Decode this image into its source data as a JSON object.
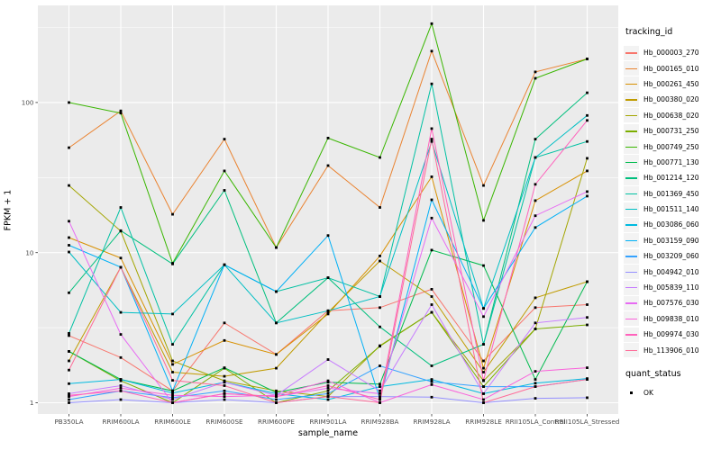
{
  "chart_data": {
    "type": "line",
    "title": "",
    "xlabel": "sample_name",
    "ylabel": "FPKM + 1",
    "y_scale": "log10",
    "y_ticks": [
      1,
      10,
      100
    ],
    "y_minor": [
      3.162,
      31.62,
      316.2
    ],
    "ylim": [
      0.84,
      420
    ],
    "grid": true,
    "panel_bg": "#EBEBEB",
    "grid_color": "#FFFFFF",
    "axis_text_color": "#4D4D4D",
    "point_color": "#000000",
    "categories": [
      "PB350LA",
      "RRIM600LA",
      "RRIM600LE",
      "RRIM600SE",
      "RRIM600PE",
      "RRIM901LA",
      "RRIM928BA",
      "RRIM928LA",
      "RRIM928LE",
      "RRII105LA_Control",
      "RRII105LA_Stressed"
    ],
    "series": [
      {
        "name": "Hb_000003_270",
        "color": "#F8766D",
        "values": [
          2.8,
          2.0,
          1.2,
          3.4,
          2.1,
          4.1,
          4.3,
          5.7,
          1.9,
          4.3,
          4.5
        ]
      },
      {
        "name": "Hb_000165_010",
        "color": "#EA8331",
        "values": [
          50,
          88,
          18,
          57,
          10.8,
          38,
          20,
          220,
          28,
          160,
          195
        ]
      },
      {
        "name": "Hb_000261_450",
        "color": "#D89000",
        "values": [
          12.6,
          9.2,
          1.8,
          2.6,
          2.1,
          3.9,
          9.5,
          32,
          1.7,
          22.2,
          35
        ]
      },
      {
        "name": "Hb_000380_020",
        "color": "#C09B00",
        "values": [
          1.9,
          8.0,
          1.6,
          1.5,
          1.7,
          4.0,
          8.8,
          5.1,
          1.6,
          5.0,
          6.4
        ]
      },
      {
        "name": "Hb_000638_020",
        "color": "#A3A500",
        "values": [
          28,
          13.9,
          1.9,
          1.4,
          1.2,
          1.1,
          2.4,
          4.0,
          1.4,
          3.1,
          42.5
        ]
      },
      {
        "name": "Hb_000731_250",
        "color": "#7CAE00",
        "values": [
          2.2,
          1.4,
          1.0,
          1.7,
          1.0,
          1.2,
          2.38,
          4.0,
          1.28,
          3.1,
          3.3
        ]
      },
      {
        "name": "Hb_000749_250",
        "color": "#39B600",
        "values": [
          100,
          85,
          8.5,
          35,
          10.8,
          58,
          43,
          335,
          16.4,
          145,
          195
        ]
      },
      {
        "name": "Hb_000771_130",
        "color": "#00BB4E",
        "values": [
          2.2,
          1.43,
          1.2,
          1.71,
          1.17,
          1.37,
          1.33,
          10.4,
          8.2,
          1.43,
          6.4
        ]
      },
      {
        "name": "Hb_001214_120",
        "color": "#00BF7D",
        "values": [
          5.4,
          14,
          8.4,
          26,
          3.4,
          6.8,
          3.2,
          1.76,
          2.45,
          57,
          116
        ]
      },
      {
        "name": "Hb_001369_450",
        "color": "#00C1A3",
        "values": [
          2.9,
          20,
          2.45,
          8.3,
          5.5,
          6.8,
          5.1,
          133,
          2.45,
          43,
          55
        ]
      },
      {
        "name": "Hb_001511_140",
        "color": "#00BFC4",
        "values": [
          10.1,
          4.0,
          3.9,
          8.3,
          3.4,
          4.1,
          5.1,
          55,
          4.25,
          43,
          82
        ]
      },
      {
        "name": "Hb_003086_060",
        "color": "#00BAE0",
        "values": [
          1.34,
          1.43,
          1.16,
          1.37,
          1.15,
          1.05,
          1.28,
          1.43,
          1.15,
          1.35,
          1.45
        ]
      },
      {
        "name": "Hb_003159_090",
        "color": "#00B0F6",
        "values": [
          11.2,
          8.0,
          1.2,
          8.3,
          5.5,
          13,
          1.06,
          22.5,
          4.25,
          14.7,
          23.8
        ]
      },
      {
        "name": "Hb_003209_060",
        "color": "#35A2FF",
        "values": [
          1.05,
          1.2,
          1.08,
          1.2,
          1.05,
          1.15,
          1.76,
          1.38,
          1.28,
          1.28,
          1.43
        ]
      },
      {
        "name": "Hb_004942_010",
        "color": "#9590FF",
        "values": [
          1.0,
          1.05,
          1.0,
          1.05,
          1.0,
          1.1,
          1.1,
          1.09,
          1.0,
          1.07,
          1.08
        ]
      },
      {
        "name": "Hb_005839_110",
        "color": "#C77CFF",
        "values": [
          1.15,
          1.3,
          1.05,
          1.37,
          1.12,
          1.94,
          1.2,
          4.5,
          1.15,
          3.4,
          3.7
        ]
      },
      {
        "name": "Hb_007576_030",
        "color": "#E76BF3",
        "values": [
          16.2,
          2.85,
          1.0,
          1.15,
          1.1,
          1.25,
          1.15,
          17,
          3.75,
          17.6,
          25.5
        ]
      },
      {
        "name": "Hb_009838_010",
        "color": "#FA62DB",
        "values": [
          1.1,
          1.25,
          1.12,
          1.1,
          1.12,
          1.4,
          1.0,
          1.32,
          1.05,
          1.62,
          1.71
        ]
      },
      {
        "name": "Hb_009974_030",
        "color": "#FF62BC",
        "values": [
          1.12,
          1.2,
          1.0,
          1.15,
          1.1,
          1.3,
          1.05,
          67,
          1.41,
          28.5,
          76
        ]
      },
      {
        "name": "Hb_113906_010",
        "color": "#FF6A98",
        "values": [
          1.65,
          8.0,
          1.41,
          1.3,
          1.0,
          1.1,
          1.0,
          57,
          1.0,
          1.28,
          1.43
        ]
      }
    ],
    "legend": {
      "position": "right",
      "key_fill": "#F3F3F3",
      "tracking_title": "tracking_id",
      "quant_title": "quant_status",
      "quant_items": [
        {
          "label": "OK",
          "shape": "square",
          "color": "#000000"
        }
      ]
    }
  }
}
